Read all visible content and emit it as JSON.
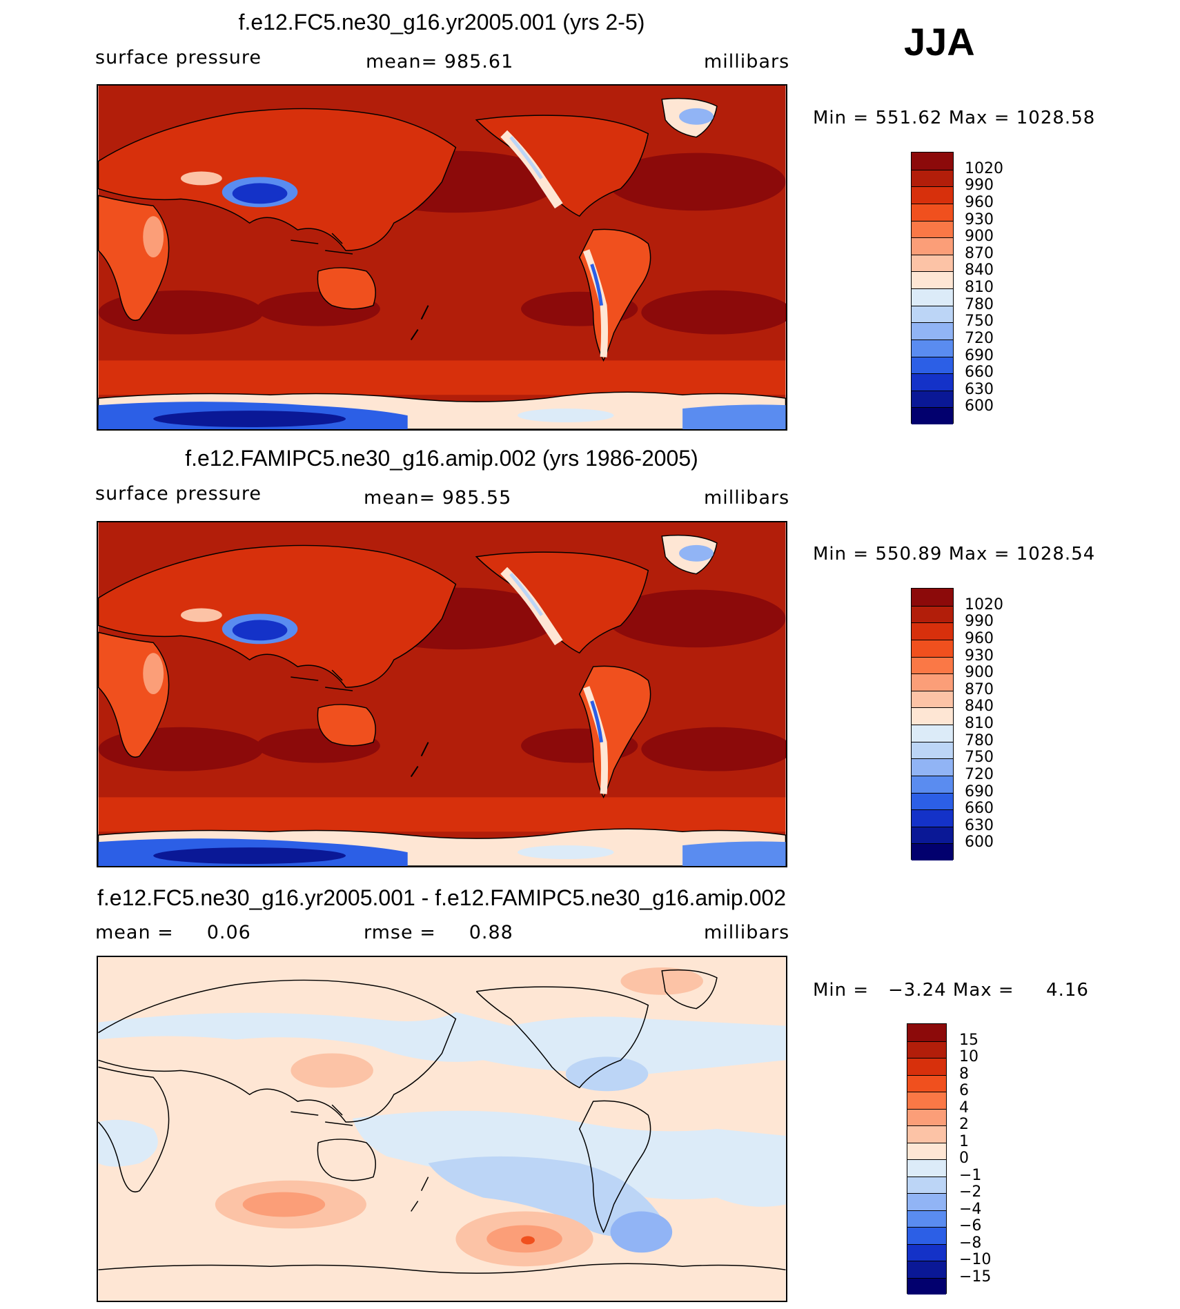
{
  "season": "JJA",
  "panels": [
    {
      "title": "f.e12.FC5.ne30_g16.yr2005.001 (yrs 2-5)",
      "left_label": "surface pressure",
      "center_label": "mean= 985.61",
      "right_label": "millibars",
      "minmax": "Min = 551.62 Max = 1028.58",
      "colorbar": {
        "labels": [
          "1020",
          "990",
          "960",
          "930",
          "900",
          "870",
          "840",
          "810",
          "780",
          "750",
          "720",
          "690",
          "660",
          "630",
          "600"
        ],
        "colors": [
          "#8c0a0a",
          "#b21e0a",
          "#d7300c",
          "#f0501e",
          "#fa7846",
          "#fb9e78",
          "#fcc3a6",
          "#fee6d4",
          "#dcebf8",
          "#bcd5f6",
          "#91b4f5",
          "#5a8cf0",
          "#2c5fe6",
          "#1432c8",
          "#0a1896",
          "#02006e"
        ]
      }
    },
    {
      "title": "f.e12.FAMIPC5.ne30_g16.amip.002 (yrs 1986-2005)",
      "left_label": "surface pressure",
      "center_label": "mean= 985.55",
      "right_label": "millibars",
      "minmax": "Min = 550.89 Max = 1028.54",
      "colorbar": {
        "labels": [
          "1020",
          "990",
          "960",
          "930",
          "900",
          "870",
          "840",
          "810",
          "780",
          "750",
          "720",
          "690",
          "660",
          "630",
          "600"
        ],
        "colors": [
          "#8c0a0a",
          "#b21e0a",
          "#d7300c",
          "#f0501e",
          "#fa7846",
          "#fb9e78",
          "#fcc3a6",
          "#fee6d4",
          "#dcebf8",
          "#bcd5f6",
          "#91b4f5",
          "#5a8cf0",
          "#2c5fe6",
          "#1432c8",
          "#0a1896",
          "#02006e"
        ]
      }
    },
    {
      "title": "f.e12.FC5.ne30_g16.yr2005.001 - f.e12.FAMIPC5.ne30_g16.amip.002",
      "left_label": "mean =     0.06",
      "center_label": "rmse =     0.88",
      "right_label": "millibars",
      "minmax": "Min =   −3.24 Max =     4.16",
      "colorbar": {
        "labels": [
          "15",
          "10",
          "8",
          "6",
          "4",
          "2",
          "1",
          "0",
          "−1",
          "−2",
          "−4",
          "−6",
          "−8",
          "−10",
          "−15"
        ],
        "colors": [
          "#8c0a0a",
          "#b21e0a",
          "#d7300c",
          "#f0501e",
          "#fa7846",
          "#fb9e78",
          "#fcc3a6",
          "#fee6d4",
          "#dcebf8",
          "#bcd5f6",
          "#91b4f5",
          "#5a8cf0",
          "#2c5fe6",
          "#1432c8",
          "#0a1896",
          "#02006e"
        ]
      }
    }
  ],
  "colors": {
    "ocean_high": "#b21e0a",
    "very_high": "#8c0a0a",
    "diff_background": "#fee6d4",
    "diff_negative": "#dcebf8"
  }
}
